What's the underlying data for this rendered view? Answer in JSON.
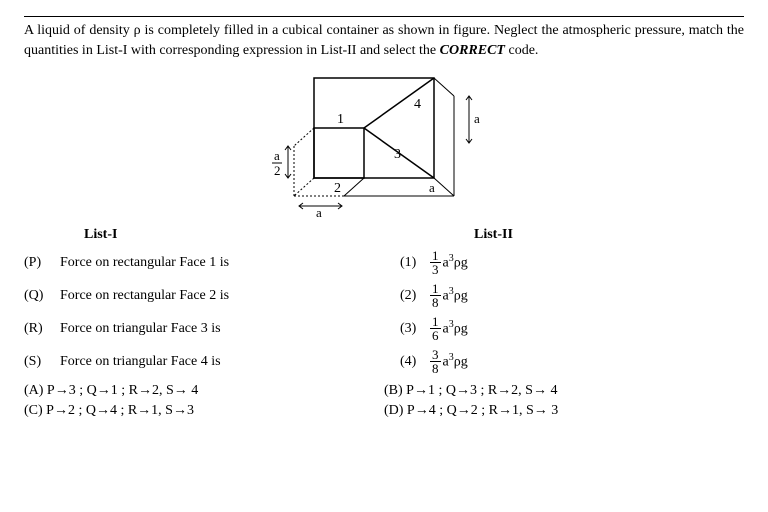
{
  "problem": "A liquid of density ρ is completely filled in a cubical container as shown in figure. Neglect the atmospheric pressure, match the quantities in List-I with corresponding expression in List-II and select the ",
  "problem_bold": "CORRECT",
  "problem_tail": " code.",
  "figure": {
    "labels": {
      "face1": "1",
      "face2": "2",
      "face3": "3",
      "face4": "4",
      "a": "a",
      "a_half_num": "a",
      "a_half_den": "2"
    }
  },
  "list_headers": {
    "list1": "List-I",
    "list2": "List-II"
  },
  "rows": [
    {
      "tag": "(P)",
      "desc": "Force on rectangular Face 1 is",
      "num": "(1)",
      "frac_n": "1",
      "frac_d": "3",
      "expr_tail": "a³ρg"
    },
    {
      "tag": "(Q)",
      "desc": "Force on rectangular Face 2 is",
      "num": "(2)",
      "frac_n": "1",
      "frac_d": "8",
      "expr_tail": "a³ρg"
    },
    {
      "tag": "(R)",
      "desc": "Force on triangular Face 3 is",
      "num": "(3)",
      "frac_n": "1",
      "frac_d": "6",
      "expr_tail": "a³ρg"
    },
    {
      "tag": "(S)",
      "desc": "Force on triangular Face 4 is",
      "num": "(4)",
      "frac_n": "3",
      "frac_d": "8",
      "expr_tail": "a³ρg"
    }
  ],
  "options": [
    "(A) P→3 ; Q→1 ; R→2, S→ 4",
    "(B) P→1 ; Q→3 ; R→2, S→ 4",
    "(C) P→2 ; Q→4 ; R→1, S→3",
    "(D) P→4 ; Q→2 ; R→1, S→ 3"
  ]
}
